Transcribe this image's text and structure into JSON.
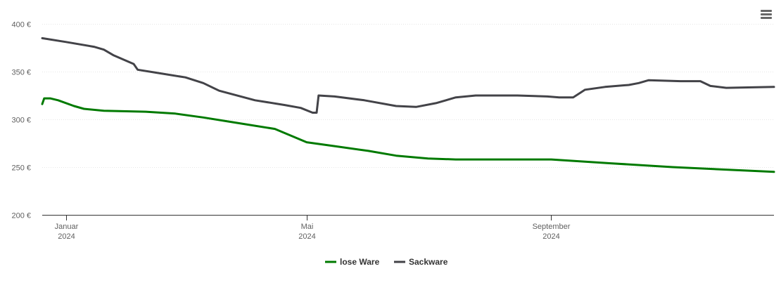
{
  "menu": {
    "icon": "hamburger-menu-icon"
  },
  "chart_data": {
    "type": "line",
    "title": "",
    "xlabel": "",
    "ylabel": "",
    "ylim": [
      200,
      400
    ],
    "xlim": [
      "2023-12-20",
      "2024-12-22"
    ],
    "yticks": [
      {
        "value": 200,
        "label": "200 €"
      },
      {
        "value": 250,
        "label": "250 €"
      },
      {
        "value": 300,
        "label": "300 €"
      },
      {
        "value": 350,
        "label": "350 €"
      },
      {
        "value": 400,
        "label": "400 €"
      }
    ],
    "xticks": [
      {
        "date": "2024-01-01",
        "month": "Januar",
        "year": "2024"
      },
      {
        "date": "2024-05-01",
        "month": "Mai",
        "year": "2024"
      },
      {
        "date": "2024-09-01",
        "month": "September",
        "year": "2024"
      }
    ],
    "grid": true,
    "legend": "bottom-center",
    "series": [
      {
        "name": "lose Ware",
        "color": "#007a00",
        "points": [
          [
            "2023-12-20",
            316
          ],
          [
            "2023-12-21",
            322
          ],
          [
            "2023-12-24",
            322
          ],
          [
            "2023-12-28",
            320
          ],
          [
            "2024-01-05",
            314
          ],
          [
            "2024-01-10",
            311
          ],
          [
            "2024-01-20",
            309
          ],
          [
            "2024-02-10",
            308
          ],
          [
            "2024-02-25",
            306
          ],
          [
            "2024-03-10",
            302
          ],
          [
            "2024-03-25",
            297
          ],
          [
            "2024-04-15",
            290
          ],
          [
            "2024-05-01",
            276
          ],
          [
            "2024-05-15",
            272
          ],
          [
            "2024-06-01",
            267
          ],
          [
            "2024-06-15",
            262
          ],
          [
            "2024-07-01",
            259
          ],
          [
            "2024-07-15",
            258
          ],
          [
            "2024-08-01",
            258
          ],
          [
            "2024-09-01",
            258
          ],
          [
            "2024-10-01",
            254
          ],
          [
            "2024-11-01",
            250
          ],
          [
            "2024-12-22",
            245
          ]
        ]
      },
      {
        "name": "Sackware",
        "color": "#434348",
        "points": [
          [
            "2023-12-20",
            385
          ],
          [
            "2024-01-01",
            381
          ],
          [
            "2024-01-15",
            376
          ],
          [
            "2024-01-20",
            373
          ],
          [
            "2024-01-25",
            367
          ],
          [
            "2024-02-04",
            358
          ],
          [
            "2024-02-06",
            352
          ],
          [
            "2024-02-15",
            349
          ],
          [
            "2024-03-01",
            344
          ],
          [
            "2024-03-10",
            338
          ],
          [
            "2024-03-18",
            330
          ],
          [
            "2024-04-05",
            320
          ],
          [
            "2024-04-20",
            315
          ],
          [
            "2024-04-28",
            312
          ],
          [
            "2024-05-04",
            307
          ],
          [
            "2024-05-06",
            307
          ],
          [
            "2024-05-07",
            325
          ],
          [
            "2024-05-15",
            324
          ],
          [
            "2024-05-30",
            320
          ],
          [
            "2024-06-15",
            314
          ],
          [
            "2024-06-25",
            313
          ],
          [
            "2024-07-05",
            317
          ],
          [
            "2024-07-15",
            323
          ],
          [
            "2024-07-25",
            325
          ],
          [
            "2024-08-15",
            325
          ],
          [
            "2024-08-30",
            324
          ],
          [
            "2024-09-05",
            323
          ],
          [
            "2024-09-12",
            323
          ],
          [
            "2024-09-18",
            331
          ],
          [
            "2024-09-28",
            334
          ],
          [
            "2024-10-10",
            336
          ],
          [
            "2024-10-15",
            338
          ],
          [
            "2024-10-20",
            341
          ],
          [
            "2024-11-05",
            340
          ],
          [
            "2024-11-15",
            340
          ],
          [
            "2024-11-20",
            335
          ],
          [
            "2024-11-28",
            333
          ],
          [
            "2024-12-22",
            334
          ]
        ]
      }
    ]
  }
}
